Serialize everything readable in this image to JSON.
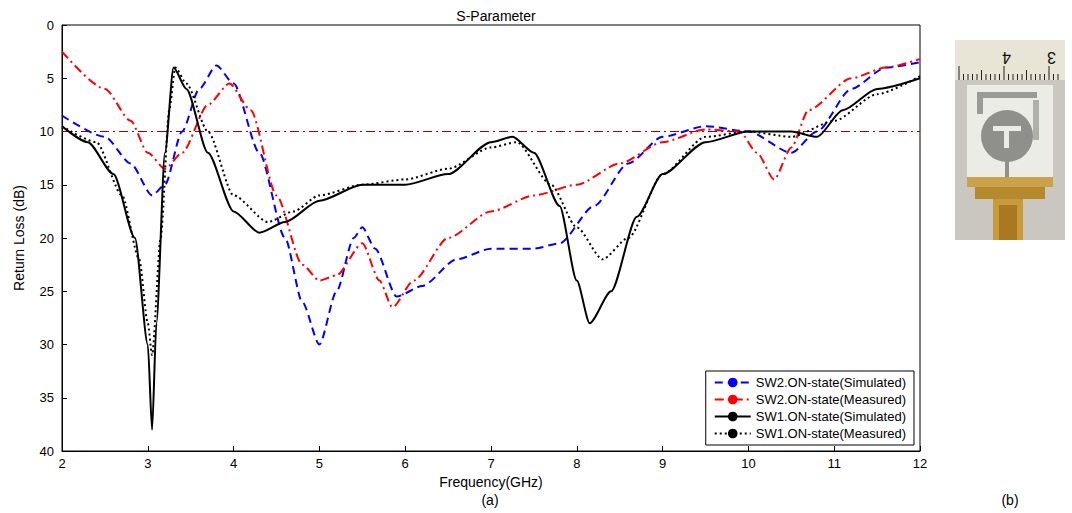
{
  "chart_data": {
    "type": "line",
    "title": "S-Parameter",
    "x_label": "Frequency(GHz)",
    "y_label": "Return Loss (dB)",
    "xlim": [
      2,
      12
    ],
    "xticks": [
      2,
      3,
      4,
      5,
      6,
      7,
      8,
      9,
      10,
      11,
      12
    ],
    "ylim": [
      0,
      40
    ],
    "yticks": [
      0,
      5,
      10,
      15,
      20,
      25,
      30,
      35,
      40
    ],
    "grid": false,
    "legend": "lower right",
    "reference_line": {
      "y": 10,
      "color": "#a50000",
      "line_style": "dashdot"
    },
    "series": [
      {
        "name": "SW2.ON-state(Simulated)",
        "color": "#0000ff",
        "line_style": "dashed",
        "x": [
          2,
          2.5,
          2.8,
          3.05,
          3.2,
          3.4,
          3.6,
          3.8,
          4.0,
          4.3,
          4.6,
          4.8,
          5.0,
          5.2,
          5.4,
          5.5,
          5.65,
          5.9,
          6.2,
          6.6,
          7.0,
          7.5,
          7.8,
          8.2,
          8.6,
          9.0,
          9.5,
          10.0,
          10.5,
          10.8,
          11.2,
          11.6,
          12
        ],
        "values": [
          8.5,
          10.5,
          13,
          16,
          15,
          10,
          6,
          3.8,
          5.5,
          12,
          20,
          26,
          30,
          25,
          20,
          19,
          21,
          25.5,
          24.5,
          22,
          21,
          21,
          20.5,
          17,
          13,
          10.5,
          9.5,
          10,
          12,
          10,
          6,
          4,
          3.5
        ]
      },
      {
        "name": "SW2.ON-state(Measured)",
        "color": "#ff0000",
        "line_style": "dashdot",
        "x": [
          2,
          2.5,
          2.8,
          3.0,
          3.2,
          3.4,
          3.7,
          3.95,
          4.2,
          4.5,
          4.8,
          5.0,
          5.2,
          5.5,
          5.7,
          5.85,
          6.1,
          6.5,
          7.0,
          7.5,
          8.0,
          8.5,
          9.0,
          9.5,
          9.9,
          10.1,
          10.3,
          10.5,
          10.7,
          11.2,
          11.6,
          12
        ],
        "values": [
          2.5,
          6,
          9,
          12,
          13.5,
          12,
          7.5,
          5.5,
          8,
          16,
          22.5,
          24,
          23.5,
          20.5,
          24,
          26.5,
          24,
          20,
          17.5,
          16,
          15,
          13,
          11,
          9.8,
          10,
          12,
          14.5,
          11.5,
          8,
          5,
          4,
          3.2
        ]
      },
      {
        "name": "SW1.ON-state(Simulated)",
        "color": "#000000",
        "line_style": "solid",
        "x": [
          2,
          2.3,
          2.6,
          2.85,
          3.0,
          3.05,
          3.1,
          3.2,
          3.3,
          3.45,
          3.7,
          4.0,
          4.3,
          4.6,
          5.0,
          5.5,
          6.0,
          6.5,
          7.0,
          7.25,
          7.5,
          7.8,
          8.0,
          8.15,
          8.4,
          8.7,
          9.0,
          9.5,
          10.0,
          10.5,
          10.8,
          11.1,
          11.5,
          12
        ],
        "values": [
          9.5,
          11,
          14,
          20,
          30,
          38,
          28,
          12,
          4,
          6,
          12,
          17.5,
          19.5,
          18.5,
          16.5,
          15,
          15,
          14,
          11,
          10.5,
          12,
          17,
          24,
          28,
          25,
          18,
          14,
          11,
          10,
          10,
          10.5,
          8,
          6,
          5
        ]
      },
      {
        "name": "SW1.ON-state(Measured)",
        "color": "#000000",
        "line_style": "dotted",
        "x": [
          2,
          2.4,
          2.7,
          2.9,
          3.0,
          3.05,
          3.15,
          3.25,
          3.32,
          3.45,
          3.7,
          4.0,
          4.4,
          4.7,
          5.0,
          5.5,
          6.0,
          6.5,
          7.0,
          7.3,
          7.7,
          8.0,
          8.3,
          8.6,
          9.0,
          9.5,
          10.0,
          10.5,
          11.0,
          11.5,
          12
        ],
        "values": [
          9.5,
          11,
          16,
          22,
          28,
          31,
          20,
          8,
          4,
          5.5,
          10,
          16,
          18.5,
          17.5,
          16,
          15,
          14.5,
          13.5,
          11.5,
          11,
          15,
          19,
          22,
          20,
          14,
          10.5,
          10,
          10.5,
          9,
          6.5,
          4.8
        ]
      }
    ]
  },
  "panel_labels": [
    "(a)",
    "(b)"
  ],
  "photo": {
    "ruler_labels": [
      "4",
      "3"
    ]
  }
}
